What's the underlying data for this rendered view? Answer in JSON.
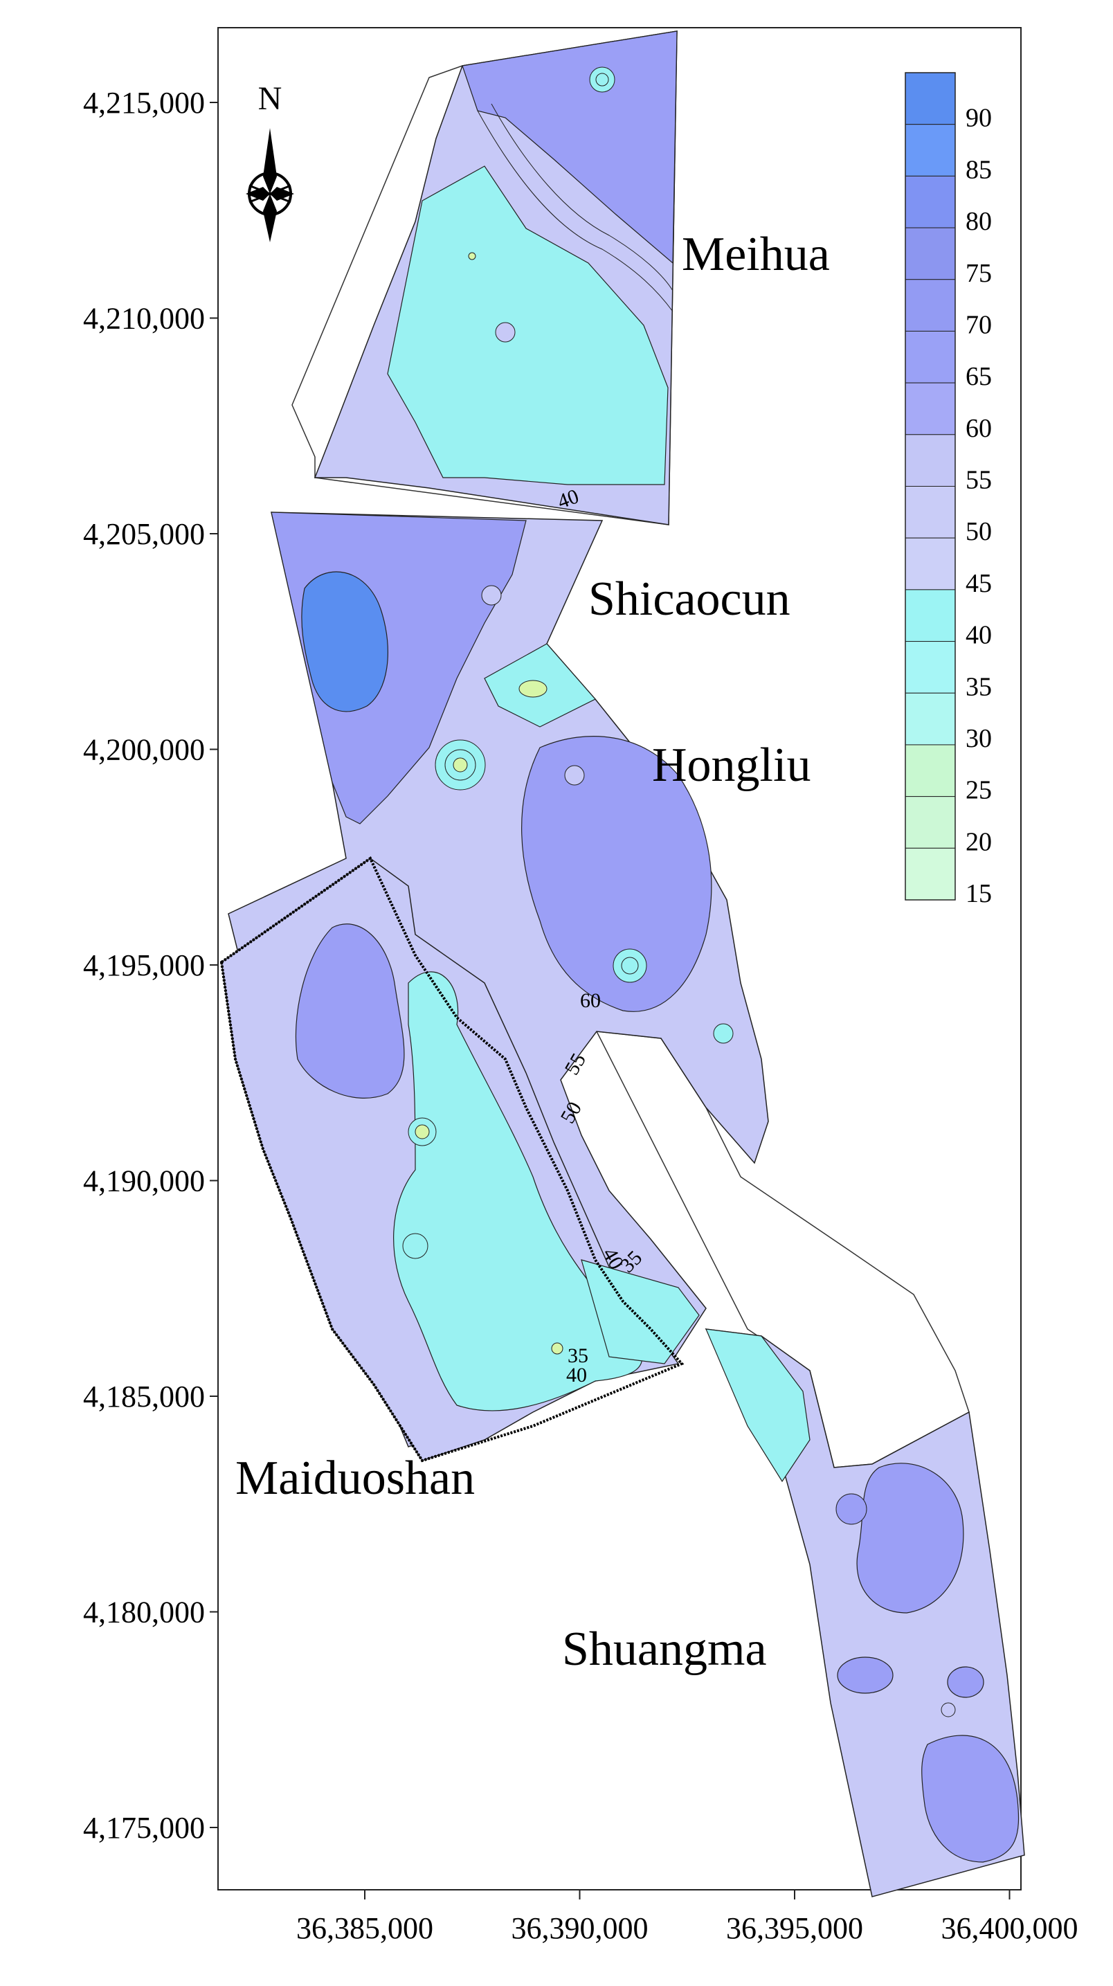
{
  "axes": {
    "y_ticks": [
      {
        "value": 4215000,
        "label": "4,215,000"
      },
      {
        "value": 4210000,
        "label": "4,210,000"
      },
      {
        "value": 4205000,
        "label": "4,205,000"
      },
      {
        "value": 4200000,
        "label": "4,200,000"
      },
      {
        "value": 4195000,
        "label": "4,195,000"
      },
      {
        "value": 4190000,
        "label": "4,190,000"
      },
      {
        "value": 4185000,
        "label": "4,185,000"
      },
      {
        "value": 4180000,
        "label": "4,180,000"
      },
      {
        "value": 4175000,
        "label": "4,175,000"
      }
    ],
    "x_ticks": [
      {
        "value": 36385000,
        "label": "36,385,000"
      },
      {
        "value": 36390000,
        "label": "36,390,000"
      },
      {
        "value": 36395000,
        "label": "36,395,000"
      },
      {
        "value": 36400000,
        "label": "36,400,000"
      }
    ]
  },
  "north_arrow": {
    "label": "N",
    "icon": "compass-rose-icon"
  },
  "regions": {
    "meihua": "Meihua",
    "shicaocun": "Shicaocun",
    "hongliu": "Hongliu",
    "maiduoshan": "Maiduoshan",
    "shuangma": "Shuangma"
  },
  "legend": {
    "breaks": [
      "90",
      "85",
      "80",
      "75",
      "70",
      "65",
      "60",
      "55",
      "50",
      "45",
      "40",
      "35",
      "30",
      "25",
      "20",
      "15"
    ],
    "colors": [
      "#5b8ef0",
      "#6a9af8",
      "#7f93f3",
      "#8c96f0",
      "#939bf3",
      "#9aa1f6",
      "#a6aaf7",
      "#c3c6f6",
      "#c9ccf7",
      "#ccd0f8",
      "#9cf4f4",
      "#a6f6f6",
      "#b0f8f2",
      "#c8f8d0",
      "#ccf8d6",
      "#d2fadc"
    ]
  },
  "contour_labels": {
    "c40_top": "40",
    "c60": "60",
    "c55": "55",
    "c50": "50",
    "c40_mid": "40",
    "c35_mid": "35",
    "c35_low": "35",
    "c40_low": "40"
  },
  "palette": {
    "high": "#5a8ef0",
    "upper": "#9b9ff6",
    "mid": "#c7c9f7",
    "low": "#9af2f2",
    "lowest": "#d8f6a8"
  }
}
